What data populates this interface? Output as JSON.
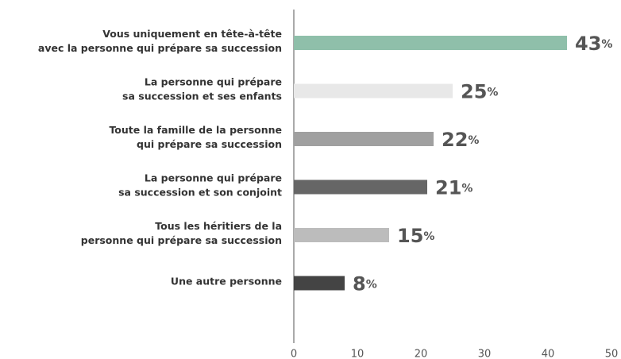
{
  "chart_data": {
    "type": "barh",
    "categories": [
      "Vous uniquement en tête-à-tête\navec la personne qui prépare sa succession",
      "La personne qui prépare\nsa succession et ses enfants",
      "Toute la famille de la personne\nqui prépare sa succession",
      "La personne qui prépare\nsa succession et son conjoint",
      "Tous les héritiers de la\npersonne qui prépare sa succession",
      "Une autre personne"
    ],
    "values": [
      43,
      25,
      22,
      21,
      15,
      8
    ],
    "value_labels": [
      "43%",
      "25%",
      "22%",
      "21%",
      "15%",
      "8%"
    ],
    "colors": [
      "#8fbfaa",
      "#e8e8e8",
      "#a0a0a0",
      "#666666",
      "#bcbcbc",
      "#444444"
    ],
    "xlim": [
      0,
      50
    ],
    "xticks": [
      0,
      10,
      20,
      30,
      40,
      50
    ],
    "grid": false
  }
}
